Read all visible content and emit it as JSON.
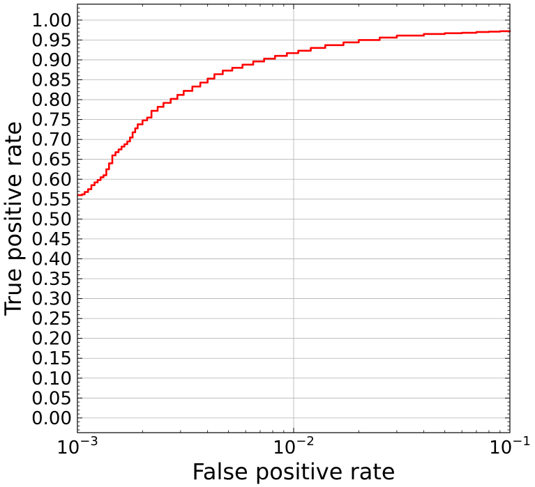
{
  "chart_data": {
    "type": "line",
    "xlabel": "False positive rate",
    "ylabel": "True positive rate",
    "xscale": "log",
    "xlim": [
      0.001,
      0.1
    ],
    "ylim": [
      -0.037,
      1.04
    ],
    "grid": true,
    "x_ticks": [
      {
        "value": 0.001,
        "base": "10",
        "exp": "−3"
      },
      {
        "value": 0.01,
        "base": "10",
        "exp": "−2"
      },
      {
        "value": 0.1,
        "base": "10",
        "exp": "−1"
      }
    ],
    "y_ticks": [
      {
        "value": 0.0,
        "label": "0.00"
      },
      {
        "value": 0.05,
        "label": "0.05"
      },
      {
        "value": 0.1,
        "label": "0.10"
      },
      {
        "value": 0.15,
        "label": "0.15"
      },
      {
        "value": 0.2,
        "label": "0.20"
      },
      {
        "value": 0.25,
        "label": "0.25"
      },
      {
        "value": 0.3,
        "label": "0.30"
      },
      {
        "value": 0.35,
        "label": "0.35"
      },
      {
        "value": 0.4,
        "label": "0.40"
      },
      {
        "value": 0.45,
        "label": "0.45"
      },
      {
        "value": 0.5,
        "label": "0.50"
      },
      {
        "value": 0.55,
        "label": "0.55"
      },
      {
        "value": 0.6,
        "label": "0.60"
      },
      {
        "value": 0.65,
        "label": "0.65"
      },
      {
        "value": 0.7,
        "label": "0.70"
      },
      {
        "value": 0.75,
        "label": "0.75"
      },
      {
        "value": 0.8,
        "label": "0.80"
      },
      {
        "value": 0.85,
        "label": "0.85"
      },
      {
        "value": 0.9,
        "label": "0.90"
      },
      {
        "value": 0.95,
        "label": "0.95"
      },
      {
        "value": 1.0,
        "label": "1.00"
      }
    ],
    "series": [
      {
        "color": "#ff0000",
        "x": [
          0.001,
          0.00105,
          0.00108,
          0.00112,
          0.00116,
          0.0012,
          0.00124,
          0.00128,
          0.00132,
          0.00136,
          0.0014,
          0.00145,
          0.0015,
          0.00155,
          0.0016,
          0.00165,
          0.0017,
          0.00175,
          0.0018,
          0.00185,
          0.0019,
          0.002,
          0.0021,
          0.0022,
          0.00235,
          0.0025,
          0.0027,
          0.0029,
          0.0031,
          0.0034,
          0.0037,
          0.004,
          0.0043,
          0.0047,
          0.0052,
          0.0058,
          0.0065,
          0.0073,
          0.0082,
          0.0093,
          0.0105,
          0.012,
          0.014,
          0.017,
          0.02,
          0.025,
          0.03,
          0.04,
          0.05,
          0.06,
          0.07,
          0.08,
          0.09,
          0.1
        ],
        "y": [
          0.56,
          0.562,
          0.568,
          0.575,
          0.585,
          0.592,
          0.598,
          0.605,
          0.61,
          0.625,
          0.64,
          0.66,
          0.668,
          0.675,
          0.682,
          0.688,
          0.695,
          0.705,
          0.718,
          0.728,
          0.738,
          0.748,
          0.755,
          0.772,
          0.782,
          0.792,
          0.802,
          0.812,
          0.822,
          0.833,
          0.843,
          0.853,
          0.864,
          0.873,
          0.88,
          0.888,
          0.896,
          0.903,
          0.91,
          0.917,
          0.923,
          0.93,
          0.937,
          0.944,
          0.95,
          0.956,
          0.961,
          0.965,
          0.967,
          0.968,
          0.97,
          0.971,
          0.972,
          0.974
        ]
      }
    ]
  }
}
